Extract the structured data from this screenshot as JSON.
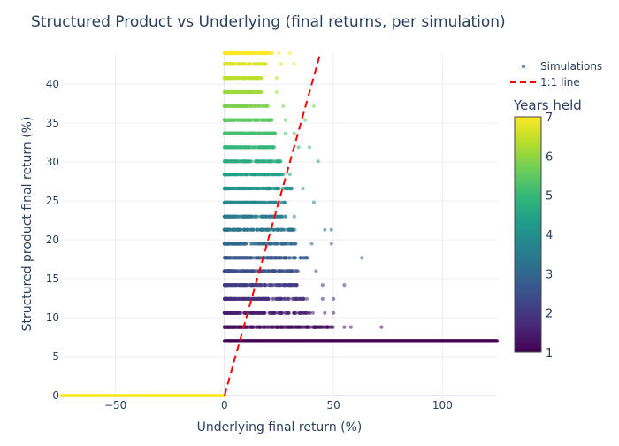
{
  "chart_data": {
    "type": "scatter",
    "title": "Structured Product vs Underlying (final returns, per simulation)",
    "xlabel": "Underlying final return (%)",
    "ylabel": "Structured product final return (%)",
    "xlim": [
      -75,
      125
    ],
    "ylim": [
      0,
      44
    ],
    "x_ticks": [
      -50,
      0,
      50,
      100
    ],
    "y_ticks": [
      0,
      5,
      10,
      15,
      20,
      25,
      30,
      35,
      40
    ],
    "grid": true,
    "legend": {
      "placement": "top-right",
      "entries": [
        "Simulations",
        "1:1 line"
      ]
    },
    "colorbar": {
      "title": "Years held",
      "range": [
        1,
        7
      ],
      "ticks": [
        1,
        2,
        3,
        4,
        5,
        6,
        7
      ],
      "colorscale": "viridis",
      "colors": [
        "#440154",
        "#482878",
        "#3e4989",
        "#31688e",
        "#26828e",
        "#1f9e89",
        "#35b779",
        "#6ece58",
        "#b5de2b",
        "#fde725"
      ]
    },
    "series": [
      {
        "name": "Simulations",
        "kind": "markers",
        "bands": [
          {
            "years": 1.0,
            "y": 7.0,
            "x_min": 0,
            "x_max": 125,
            "outliers": []
          },
          {
            "years": 1.2,
            "y": 8.8,
            "x_min": 0,
            "x_max": 50,
            "outliers": [
              55,
              58,
              72
            ]
          },
          {
            "years": 1.5,
            "y": 10.6,
            "x_min": 0,
            "x_max": 42,
            "outliers": [
              46,
              50
            ]
          },
          {
            "years": 1.8,
            "y": 12.4,
            "x_min": 0,
            "x_max": 38,
            "outliers": [
              45,
              50
            ]
          },
          {
            "years": 2.1,
            "y": 14.2,
            "x_min": 0,
            "x_max": 35,
            "outliers": [
              45,
              55
            ]
          },
          {
            "years": 2.4,
            "y": 16.0,
            "x_min": 0,
            "x_max": 34,
            "outliers": [
              42
            ]
          },
          {
            "years": 2.7,
            "y": 17.7,
            "x_min": 0,
            "x_max": 38,
            "outliers": [
              63
            ]
          },
          {
            "years": 3.0,
            "y": 19.5,
            "x_min": 0,
            "x_max": 33,
            "outliers": [
              40,
              49
            ]
          },
          {
            "years": 3.3,
            "y": 21.3,
            "x_min": 0,
            "x_max": 33,
            "outliers": [
              46,
              49
            ]
          },
          {
            "years": 3.5,
            "y": 23.0,
            "x_min": 0,
            "x_max": 29,
            "outliers": [
              32
            ]
          },
          {
            "years": 3.8,
            "y": 24.8,
            "x_min": 0,
            "x_max": 28,
            "outliers": [
              41
            ]
          },
          {
            "years": 4.1,
            "y": 26.6,
            "x_min": 0,
            "x_max": 31,
            "outliers": [
              36
            ]
          },
          {
            "years": 4.4,
            "y": 28.4,
            "x_min": 0,
            "x_max": 27,
            "outliers": [
              30
            ]
          },
          {
            "years": 4.7,
            "y": 30.1,
            "x_min": 0,
            "x_max": 26,
            "outliers": [
              43
            ]
          },
          {
            "years": 5.0,
            "y": 31.9,
            "x_min": 0,
            "x_max": 23,
            "outliers": [
              34,
              39
            ]
          },
          {
            "years": 5.2,
            "y": 33.7,
            "x_min": 0,
            "x_max": 24,
            "outliers": [
              28,
              32
            ]
          },
          {
            "years": 5.5,
            "y": 35.4,
            "x_min": 0,
            "x_max": 22,
            "outliers": [
              28,
              37
            ]
          },
          {
            "years": 5.8,
            "y": 37.2,
            "x_min": 0,
            "x_max": 20,
            "outliers": [
              27,
              41
            ]
          },
          {
            "years": 6.1,
            "y": 39.0,
            "x_min": 0,
            "x_max": 17,
            "outliers": [
              24
            ]
          },
          {
            "years": 6.4,
            "y": 40.8,
            "x_min": 0,
            "x_max": 17,
            "outliers": [
              24
            ]
          },
          {
            "years": 6.7,
            "y": 42.6,
            "x_min": 0,
            "x_max": 20,
            "outliers": [
              26,
              32
            ]
          },
          {
            "years": 7.0,
            "y": 44.0,
            "x_min": 0,
            "x_max": 22,
            "outliers": [
              25,
              30
            ]
          },
          {
            "years": 7.0,
            "y": 0.0,
            "x_min": -75,
            "x_max": 0,
            "outliers": []
          }
        ]
      },
      {
        "name": "1:1 line",
        "kind": "line",
        "color": "#ff0000",
        "dash": "dash",
        "x": [
          0,
          44
        ],
        "y": [
          0,
          44
        ]
      }
    ]
  }
}
